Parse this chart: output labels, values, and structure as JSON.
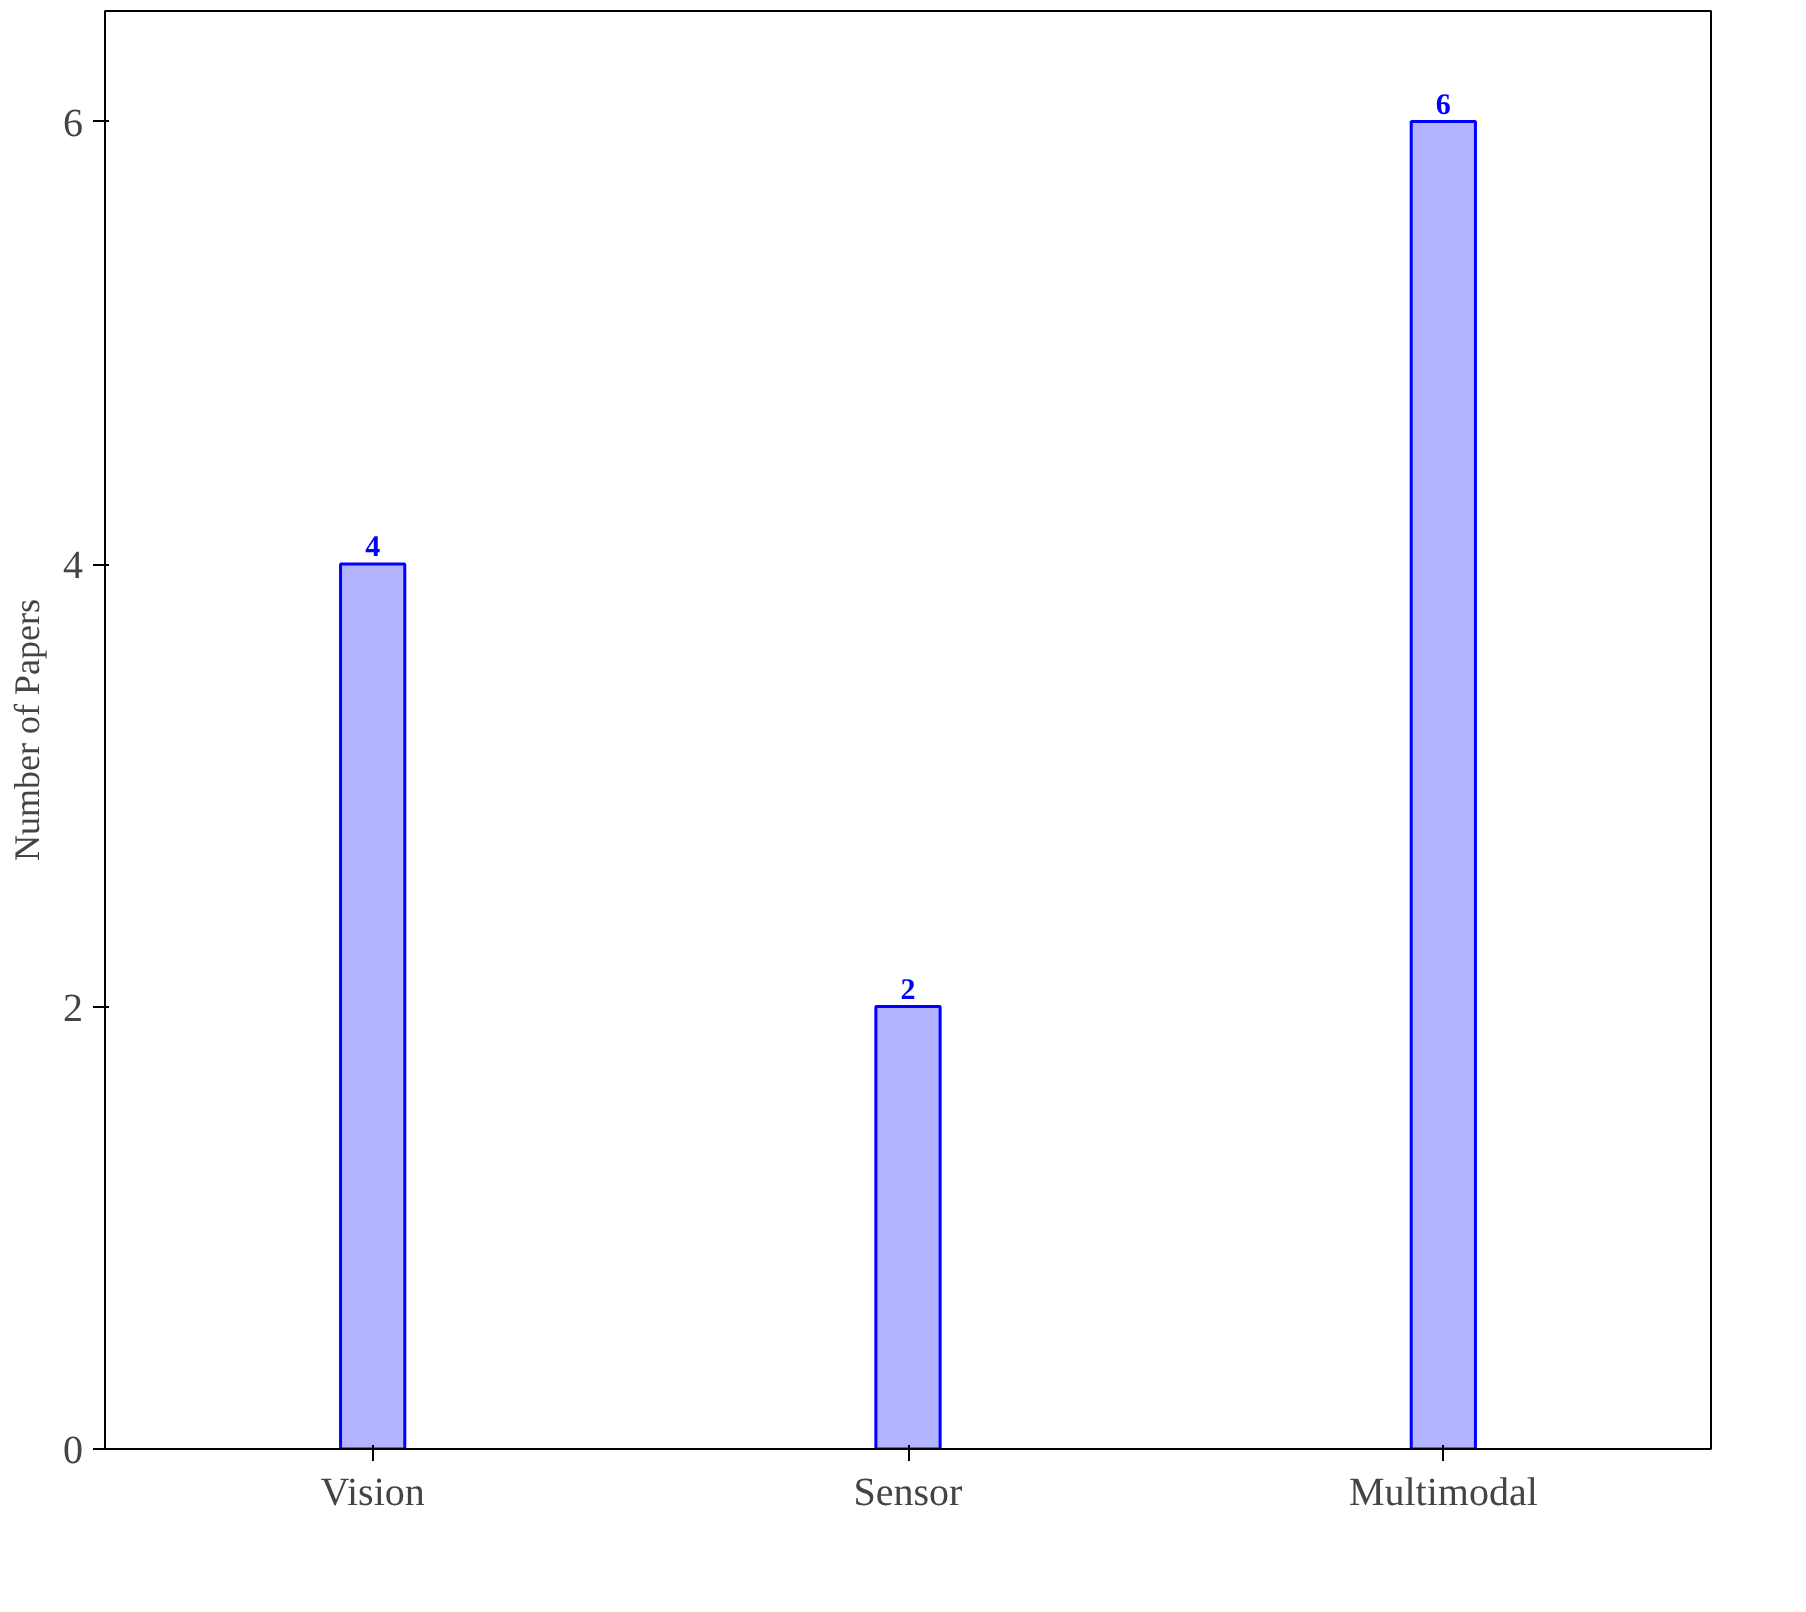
{
  "chart_data": {
    "type": "bar",
    "ylabel": "Number of Papers",
    "categories": [
      "Vision",
      "Sensor",
      "Multimodal"
    ],
    "values": [
      4,
      2,
      6
    ],
    "color": "#b3b3ff",
    "ylim": [
      0,
      6.5
    ],
    "yticks": [
      0,
      2,
      4,
      6
    ],
    "data_labels": true,
    "grid": false
  }
}
